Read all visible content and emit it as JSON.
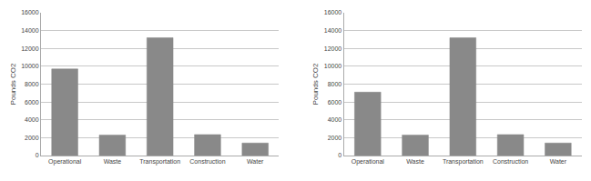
{
  "chart_data": [
    {
      "type": "bar",
      "categories": [
        "Operational",
        "Waste",
        "Transportation",
        "Construction",
        "Water"
      ],
      "values": [
        9700,
        2300,
        13200,
        2350,
        1400
      ],
      "color": "#898989",
      "ylabel": "Pounds CO2",
      "ylim": [
        0,
        16000
      ],
      "yticks": [
        0,
        2000,
        4000,
        6000,
        8000,
        10000,
        12000,
        14000,
        16000
      ],
      "grid": true
    },
    {
      "type": "bar",
      "categories": [
        "Operational",
        "Waste",
        "Transportation",
        "Construction",
        "Water"
      ],
      "values": [
        7100,
        2300,
        13200,
        2350,
        1400
      ],
      "color": "#898989",
      "ylabel": "Pounds CO2",
      "ylim": [
        0,
        16000
      ],
      "yticks": [
        0,
        2000,
        4000,
        6000,
        8000,
        10000,
        12000,
        14000,
        16000
      ],
      "grid": true
    }
  ]
}
